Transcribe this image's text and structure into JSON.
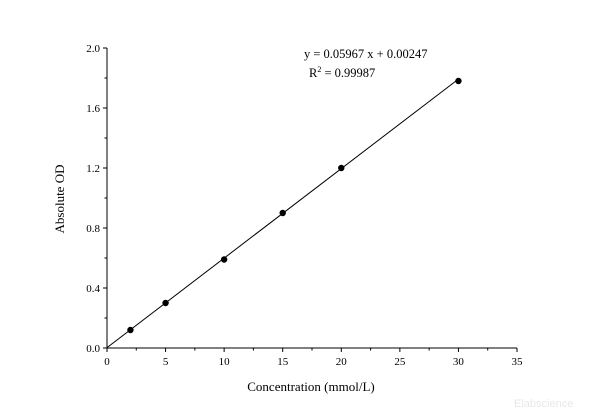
{
  "chart_data": {
    "type": "scatter",
    "title": "",
    "xlabel": "Concentration (mmol/L)",
    "ylabel": "Absolute OD",
    "xlim": [
      0,
      35
    ],
    "ylim": [
      0,
      2.0
    ],
    "x_ticks": [
      0,
      5,
      10,
      15,
      20,
      25,
      30,
      35
    ],
    "x_tick_labels": [
      "0",
      "5",
      "10",
      "15",
      "20",
      "25",
      "30",
      "35"
    ],
    "y_ticks": [
      0,
      0.4,
      0.8,
      1.2,
      1.6,
      2.0
    ],
    "y_tick_labels": [
      "0.0",
      "0.4",
      "0.8",
      "1.2",
      "1.6",
      "2.0"
    ],
    "grid": false,
    "series": [
      {
        "x": [
          0,
          2,
          5,
          10,
          15,
          20,
          30
        ],
        "y": [
          0.0,
          0.12,
          0.3,
          0.59,
          0.9,
          1.2,
          1.78
        ],
        "color": "#000000"
      }
    ],
    "fit": {
      "type": "linear",
      "slope": 0.05967,
      "intercept": 0.00247,
      "equation": "y = 0.05967 x + 0.00247",
      "r2_prefix": "R",
      "r2_superscript": "2",
      "r2_suffix": " = 0.99987"
    },
    "watermark": "Elabscience"
  }
}
